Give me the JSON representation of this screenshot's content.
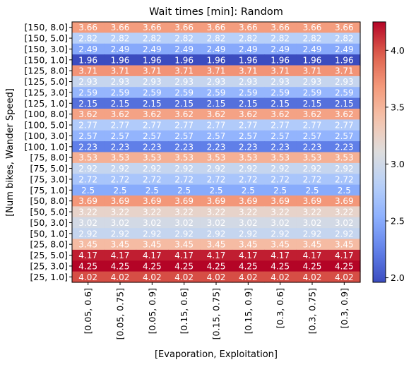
{
  "chart_data": {
    "type": "heatmap",
    "title": "Wait times [min]: Random",
    "xlabel": "[Evaporation, Exploitation]",
    "ylabel": "[Num bikes, Wander Speed]",
    "x_categories": [
      "[0.05, 0.6]",
      "[0.05, 0.75]",
      "[0.05, 0.9]",
      "[0.15, 0.6]",
      "[0.15, 0.75]",
      "[0.15, 0.9]",
      "[0.3, 0.6]",
      "[0.3, 0.75]",
      "[0.3, 0.9]"
    ],
    "y_categories": [
      "[150, 8.0]",
      "[150, 5.0]",
      "[150, 3.0]",
      "[150, 1.0]",
      "[125, 8.0]",
      "[125, 5.0]",
      "[125, 3.0]",
      "[125, 1.0]",
      "[100, 8.0]",
      "[100, 5.0]",
      "[100, 3.0]",
      "[100, 1.0]",
      "[75, 8.0]",
      "[75, 5.0]",
      "[75, 3.0]",
      "[75, 1.0]",
      "[50, 8.0]",
      "[50, 5.0]",
      "[50, 3.0]",
      "[50, 1.0]",
      "[25, 8.0]",
      "[25, 5.0]",
      "[25, 3.0]",
      "[25, 1.0]"
    ],
    "row_labels": [
      "3.66",
      "2.82",
      "2.49",
      "1.96",
      "3.71",
      "2.93",
      "2.59",
      "2.15",
      "3.62",
      "2.77",
      "2.57",
      "2.23",
      "3.53",
      "2.92",
      "2.72",
      "2.5",
      "3.69",
      "3.22",
      "3.02",
      "2.92",
      "3.45",
      "4.17",
      "4.25",
      "4.02"
    ],
    "row_values": [
      3.66,
      2.82,
      2.49,
      1.96,
      3.71,
      2.93,
      2.59,
      2.15,
      3.62,
      2.77,
      2.57,
      2.23,
      3.53,
      2.92,
      2.72,
      2.5,
      3.69,
      3.22,
      3.02,
      2.92,
      3.45,
      4.17,
      4.25,
      4.02
    ],
    "colormap": "coolwarm",
    "vmin": 1.96,
    "vmax": 4.25,
    "colorbar_ticks": [
      "2.0",
      "2.5",
      "3.0",
      "3.5",
      "4.0"
    ],
    "colorbar_tick_values": [
      2.0,
      2.5,
      3.0,
      3.5,
      4.0
    ]
  }
}
